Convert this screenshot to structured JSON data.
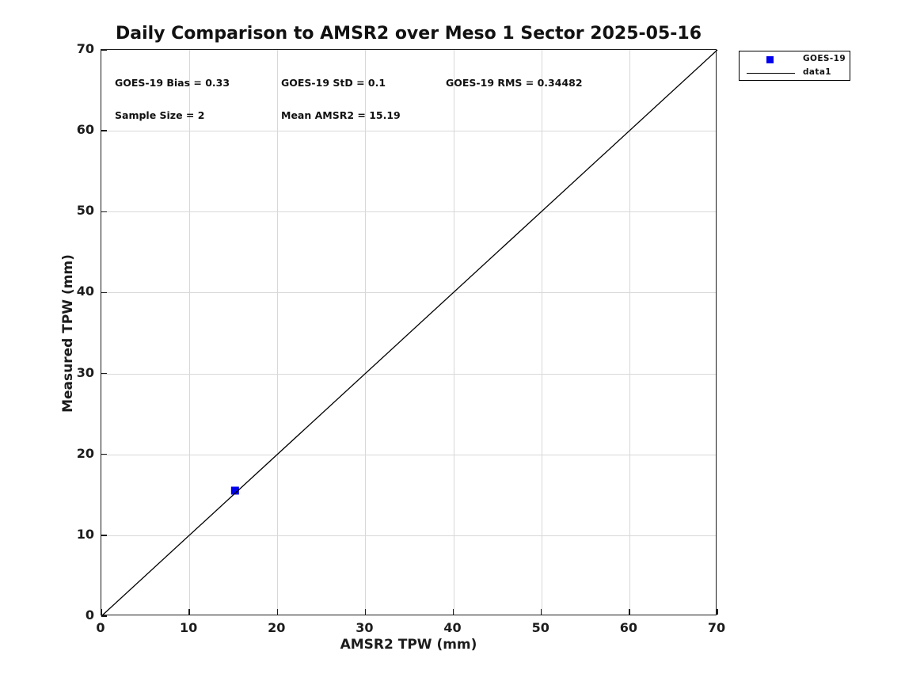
{
  "chart_data": {
    "type": "scatter",
    "title": "Daily Comparison to AMSR2 over Meso 1 Sector 2025-05-16",
    "xlabel": "AMSR2 TPW (mm)",
    "ylabel": "Measured TPW (mm)",
    "xlim": [
      0,
      70
    ],
    "ylim": [
      0,
      70
    ],
    "xticks": [
      0,
      10,
      20,
      30,
      40,
      50,
      60,
      70
    ],
    "yticks": [
      0,
      10,
      20,
      30,
      40,
      50,
      60,
      70
    ],
    "grid": true,
    "background": "#ffffff",
    "axis_color": "#1c1c1c",
    "grid_color": "#d8d8d8",
    "legend_position": "top-right-outside",
    "series": [
      {
        "name": "GOES-19",
        "kind": "scatter",
        "marker": "square",
        "marker_size": 10,
        "color": "#0000ee",
        "points": [
          {
            "x": 15.19,
            "y": 15.52
          }
        ]
      },
      {
        "name": "data1",
        "kind": "line",
        "color": "#000000",
        "points": [
          {
            "x": 0,
            "y": 0
          },
          {
            "x": 70,
            "y": 70
          }
        ]
      }
    ],
    "legend": {
      "entries": [
        {
          "label": "GOES-19",
          "swatch": "marker",
          "color": "#0000ee"
        },
        {
          "label": "data1",
          "swatch": "line",
          "color": "#000000"
        }
      ]
    },
    "annotations": [
      {
        "text": "GOES-19 Bias = 0.33"
      },
      {
        "text": "GOES-19 StD = 0.1"
      },
      {
        "text": "GOES-19 RMS = 0.34482"
      },
      {
        "text": "Sample Size = 2"
      },
      {
        "text": "Mean AMSR2 = 15.19"
      }
    ]
  }
}
